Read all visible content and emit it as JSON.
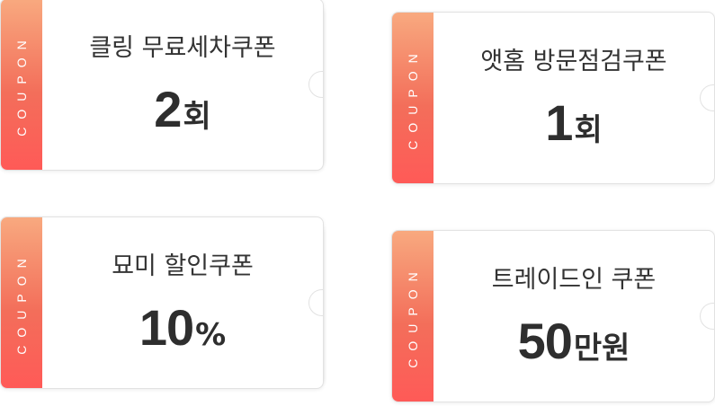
{
  "coupons": [
    {
      "stripe_label": "COUPON",
      "title": "클링 무료세차쿠폰",
      "value": "2",
      "unit": "회",
      "stacked": true
    },
    {
      "stripe_label": "COUPON",
      "title": "앳홈 방문점검쿠폰",
      "value": "1",
      "unit": "회",
      "stacked": false
    },
    {
      "stripe_label": "COUPON",
      "title": "묘미 할인쿠폰",
      "value": "10",
      "unit": "%",
      "stacked": true
    },
    {
      "stripe_label": "COUPON",
      "title": "트레이드인 쿠폰",
      "value": "50",
      "unit": "만원",
      "stacked": false
    }
  ],
  "colors": {
    "stripe_top": "#f8a97f",
    "stripe_bottom": "#ff5a57",
    "text": "#333333"
  }
}
